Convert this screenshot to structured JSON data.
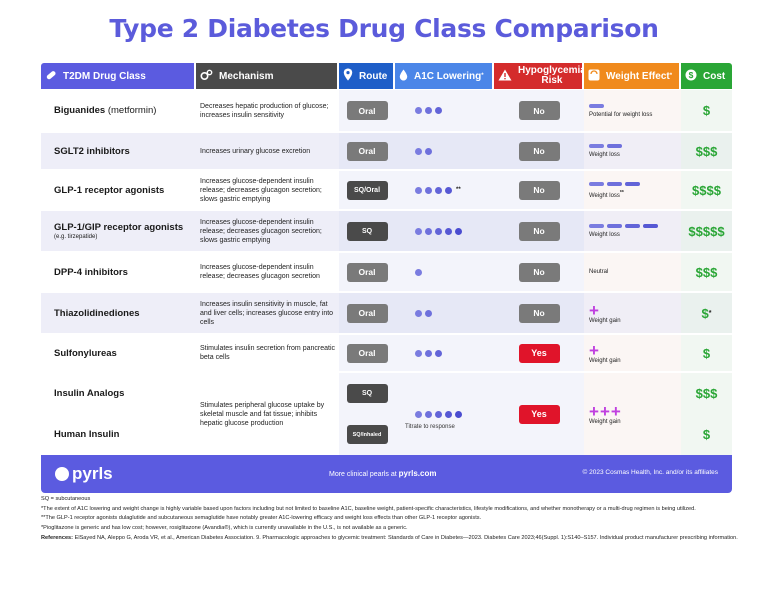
{
  "title": "Type 2 Diabetes Drug Class Comparison",
  "colors": {
    "accent": "#5b5be0",
    "a1c_dot": "#5b5bdb",
    "weight_loss_bar": "#7a7ce0",
    "weight_gain_plus": "#c040e0",
    "cost": "#2aa636",
    "hypo_yes": "#e0142a"
  },
  "headers": {
    "class": "T2DM Drug Class",
    "mechanism": "Mechanism",
    "route": "Route",
    "a1c": "A1C Lowering",
    "a1c_mark": "*",
    "hypo_line1": "Hypoglycemia",
    "hypo_line2": "Risk",
    "weight": "Weight Effect",
    "weight_mark": "*",
    "cost": "Cost"
  },
  "rows": [
    {
      "name": "Biguanides",
      "name_suffix": "(metformin)",
      "mechanism": "Decreases hepatic production of glucose; increases insulin sensitivity",
      "route": "Oral",
      "a1c_dots": 3,
      "a1c_note": "",
      "hypo": "No",
      "weight_bars": 1,
      "weight_label": "Potential for weight loss",
      "cost": "$"
    },
    {
      "name": "SGLT2 inhibitors",
      "mechanism": "Increases urinary glucose excretion",
      "route": "Oral",
      "a1c_dots": 2,
      "a1c_note": "",
      "hypo": "No",
      "weight_bars": 2,
      "weight_label": "Weight loss",
      "cost": "$$$"
    },
    {
      "name": "GLP-1 receptor agonists",
      "mechanism": "Increases glucose-dependent insulin release; decreases glucagon secretion; slows gastric emptying",
      "route": "SQ/Oral",
      "a1c_dots": 4,
      "a1c_note": "**",
      "hypo": "No",
      "weight_bars": 3,
      "weight_label": "Weight loss",
      "weight_note": "**",
      "cost": "$$$$"
    },
    {
      "name": "GLP-1/GIP receptor agonists",
      "sub": "(e.g. tirzepatide)",
      "mechanism": "Increases glucose-dependent insulin release; decreases glucagon secretion; slows gastric emptying",
      "route": "SQ",
      "a1c_dots": 5,
      "a1c_note": "",
      "hypo": "No",
      "weight_bars": 4,
      "weight_label": "Weight loss",
      "cost": "$$$$$"
    },
    {
      "name": "DPP-4 inhibitors",
      "mechanism": "Increases glucose-dependent insulin release; decreases glucagon secretion",
      "route": "Oral",
      "a1c_dots": 1,
      "a1c_note": "",
      "hypo": "No",
      "weight_bars": 0,
      "weight_label": "Neutral",
      "cost": "$$$"
    },
    {
      "name": "Thiazolidinediones",
      "mechanism": "Increases insulin sensitivity in muscle, fat and liver cells; increases glucose entry into cells",
      "route": "Oral",
      "a1c_dots": 2,
      "a1c_note": "",
      "hypo": "No",
      "weight_plus": 1,
      "weight_label": "Weight gain",
      "cost": "$",
      "cost_note": "*"
    },
    {
      "name": "Sulfonylureas",
      "mechanism": "Stimulates insulin secretion from pancreatic beta cells",
      "route": "Oral",
      "a1c_dots": 3,
      "a1c_note": "",
      "hypo": "Yes",
      "weight_plus": 1,
      "weight_label": "Weight gain",
      "cost": "$"
    }
  ],
  "insulin": {
    "name1": "Insulin Analogs",
    "name2": "Human Insulin",
    "mechanism": "Stimulates peripheral glucose uptake by skeletal muscle and fat tissue; inhibits hepatic glucose production",
    "route1": "SQ",
    "route2": "SQ/Inhaled",
    "a1c_dots": 5,
    "a1c_label": "Titrate to response",
    "hypo": "Yes",
    "weight_plus": 3,
    "weight_label": "Weight gain",
    "cost1": "$$$",
    "cost2": "$"
  },
  "footer": {
    "logo": "pyrls",
    "more_prefix": "More clinical pearls at",
    "site": "pyrls.com",
    "copyright": "© 2023 Cosmas Health, Inc. and/or its affiliates"
  },
  "notes": {
    "sq": "SQ = subcutaneous",
    "n1": "*The extent of A1C lowering and weight change is highly variable based upon factors including but not limited to baseline A1C, baseline weight, patient-specific characteristics, lifestyle modifications, and whether monotherapy or a multi-drug regimen is being utilized.",
    "n2": "**The GLP-1 receptor agonists dulaglutide and subcutaneous semaglutide have notably greater A1C-lowering efficacy and weight loss effects than other GLP-1 receptor agonists.",
    "n3": "*Pioglitazone is generic and has low cost; however, rosiglitazone (Avandia®), which is currently unavailable in the U.S., is not available as a generic.",
    "ref_label": "References:",
    "ref": "ElSayed NA, Aleppo G, Aroda VR, et al., American Diabetes Association. 9. Pharmacologic approaches to glycemic treatment: Standards of Care in Diabetes—2023. Diabetes Care 2023;46(Suppl. 1):S140–S157. Individual product manufacturer prescribing information."
  }
}
